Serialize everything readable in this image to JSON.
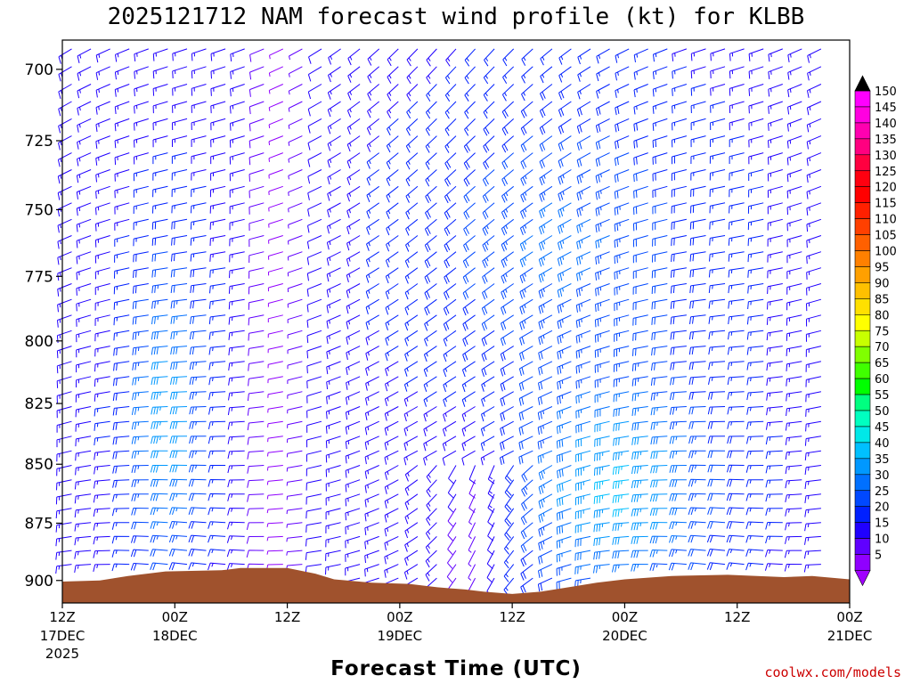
{
  "title": "2025121712 NAM forecast wind profile (kt) for KLBB",
  "credit": "coolwx.com/models",
  "chart_data": {
    "type": "wind-barb-profile",
    "title": "2025121712 NAM forecast wind profile (kt) for KLBB",
    "xlabel": "Forecast Time (UTC)",
    "ylabel": "",
    "y_axis": {
      "ticks": [
        "700",
        "725",
        "750",
        "775",
        "800",
        "825",
        "850",
        "875",
        "900"
      ],
      "range_hpa": [
        690,
        910
      ],
      "inverted": true
    },
    "x_axis": {
      "range_hours": [
        0,
        84
      ],
      "ticks": [
        {
          "hour": 0,
          "label": "12Z",
          "date": "17DEC",
          "year": "2025"
        },
        {
          "hour": 12,
          "label": "00Z",
          "date": "18DEC",
          "year": ""
        },
        {
          "hour": 24,
          "label": "12Z",
          "date": "",
          "year": ""
        },
        {
          "hour": 36,
          "label": "00Z",
          "date": "19DEC",
          "year": ""
        },
        {
          "hour": 48,
          "label": "12Z",
          "date": "",
          "year": ""
        },
        {
          "hour": 60,
          "label": "00Z",
          "date": "20DEC",
          "year": ""
        },
        {
          "hour": 72,
          "label": "12Z",
          "date": "",
          "year": ""
        },
        {
          "hour": 84,
          "label": "00Z",
          "date": "21DEC",
          "year": ""
        }
      ]
    },
    "colorbar": {
      "labels": [
        "150",
        "145",
        "140",
        "135",
        "130",
        "125",
        "120",
        "115",
        "110",
        "105",
        "100",
        "95",
        "90",
        "85",
        "80",
        "75",
        "70",
        "65",
        "60",
        "55",
        "50",
        "45",
        "40",
        "35",
        "30",
        "25",
        "20",
        "15",
        "10",
        "5"
      ],
      "colors": [
        "#ff00ff",
        "#ff00e0",
        "#ff00b0",
        "#ff0080",
        "#ff0040",
        "#ff0010",
        "#ff0000",
        "#ff2000",
        "#ff4000",
        "#ff6000",
        "#ff8000",
        "#ffa000",
        "#ffc000",
        "#ffe000",
        "#ffff00",
        "#c8ff00",
        "#80ff00",
        "#40ff00",
        "#00ff00",
        "#00ff80",
        "#00ffc0",
        "#00e8e8",
        "#00c0ff",
        "#0098ff",
        "#0070ff",
        "#0048ff",
        "#0020ff",
        "#2000ff",
        "#6000ff",
        "#9000ff"
      ],
      "top_arrow": "#000000",
      "bottom_arrow": "#a000ff"
    },
    "terrain": {
      "color": "#a0522d",
      "surface_pressure": [
        {
          "hour": 0,
          "p": 900.5
        },
        {
          "hour": 4,
          "p": 900
        },
        {
          "hour": 7,
          "p": 898
        },
        {
          "hour": 11,
          "p": 896
        },
        {
          "hour": 17,
          "p": 895.5
        },
        {
          "hour": 19,
          "p": 894.5
        },
        {
          "hour": 24,
          "p": 894.5
        },
        {
          "hour": 27,
          "p": 897
        },
        {
          "hour": 29,
          "p": 899.5
        },
        {
          "hour": 33,
          "p": 901
        },
        {
          "hour": 37,
          "p": 901.5
        },
        {
          "hour": 40,
          "p": 903
        },
        {
          "hour": 43,
          "p": 904
        },
        {
          "hour": 45,
          "p": 905
        },
        {
          "hour": 48,
          "p": 906
        },
        {
          "hour": 51,
          "p": 905
        },
        {
          "hour": 54,
          "p": 903
        },
        {
          "hour": 57,
          "p": 901
        },
        {
          "hour": 60,
          "p": 899.5
        },
        {
          "hour": 65,
          "p": 898
        },
        {
          "hour": 71,
          "p": 897.5
        },
        {
          "hour": 77,
          "p": 898.5
        },
        {
          "hour": 80,
          "p": 898
        },
        {
          "hour": 84,
          "p": 899.5
        }
      ]
    },
    "wind_regimes": {
      "speed_range_kt": [
        5,
        45
      ],
      "description": "Southwesterly to westerly barbs aloft, stronger 30-45 kt near 18DEC 00Z and 19DEC 12Z-20DEC 12Z; light variable winds near surface."
    }
  }
}
